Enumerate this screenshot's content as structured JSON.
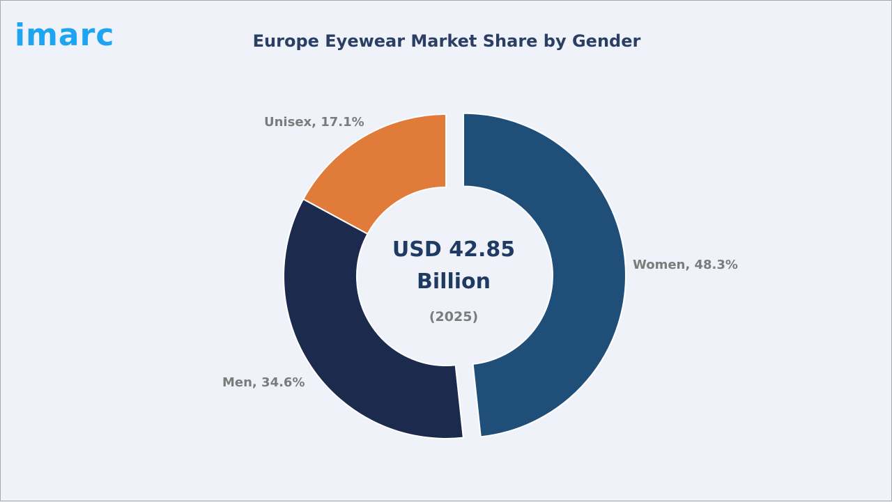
{
  "logo": {
    "text": "imarc",
    "color": "#1ea4f0"
  },
  "title": "Europe Eyewear Market Share by Gender",
  "center": {
    "line1": "USD 42.85",
    "line2": "Billion",
    "year": "(2025)"
  },
  "labels": {
    "women": "Women, 48.3%",
    "men": "Men, 34.6%",
    "unisex": "Unisex, 17.1%"
  },
  "colors": {
    "women": "#1f4e79",
    "men": "#1c2b4d",
    "unisex": "#e07b39",
    "background": "#eff3f9"
  },
  "chart_data": {
    "type": "pie",
    "subtype": "donut",
    "title": "Europe Eyewear Market Share by Gender",
    "categories": [
      "Women",
      "Men",
      "Unisex"
    ],
    "values": [
      48.3,
      34.6,
      17.1
    ],
    "unit": "%",
    "center_annotation": "USD 42.85 Billion (2025)",
    "exploded": [
      "Women"
    ],
    "legend": "none (data labels outside slices)"
  }
}
